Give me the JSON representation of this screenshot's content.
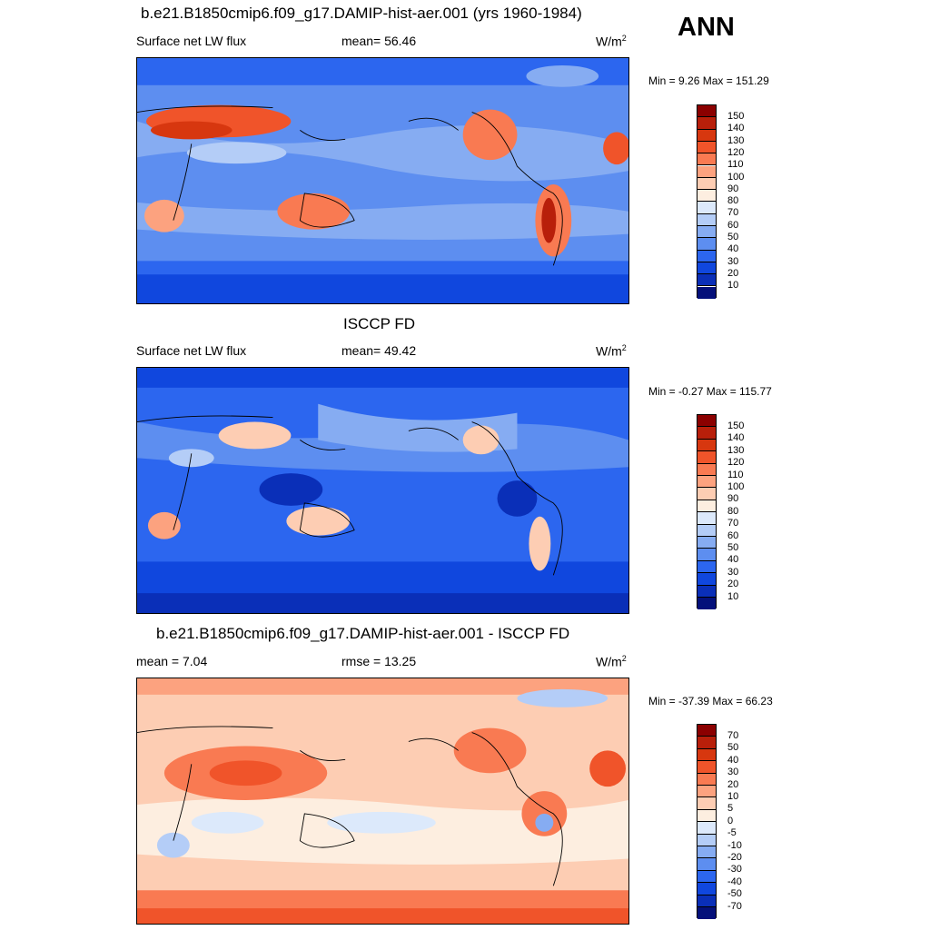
{
  "season": "ANN",
  "units": "W/m",
  "units_exp": "2",
  "panels": [
    {
      "title": "b.e21.B1850cmip6.f09_g17.DAMIP-hist-aer.001 (yrs 1960-1984)",
      "left_label": "Surface net LW flux",
      "center_label": "mean=  56.46",
      "minmax": "Min =   9.26 Max = 151.29",
      "ticks": [
        "150",
        "140",
        "130",
        "120",
        "110",
        "100",
        "90",
        "80",
        "70",
        "60",
        "50",
        "40",
        "30",
        "20",
        "10"
      ],
      "colors": [
        "#8b0000",
        "#b81f0a",
        "#d7370f",
        "#f0542a",
        "#f97a52",
        "#fca27f",
        "#fdcdb3",
        "#fdeee0",
        "#dce9fb",
        "#b4cdf7",
        "#86acf2",
        "#5d8ef0",
        "#2c66ef",
        "#1047de",
        "#0a2fb8",
        "#04107a"
      ]
    },
    {
      "title": "ISCCP FD",
      "left_label": "Surface net LW flux",
      "center_label": "mean=  49.42",
      "minmax": "Min =  -0.27 Max = 115.77",
      "ticks": [
        "150",
        "140",
        "130",
        "120",
        "110",
        "100",
        "90",
        "80",
        "70",
        "60",
        "50",
        "40",
        "30",
        "20",
        "10"
      ],
      "colors": [
        "#8b0000",
        "#b81f0a",
        "#d7370f",
        "#f0542a",
        "#f97a52",
        "#fca27f",
        "#fdcdb3",
        "#fdeee0",
        "#dce9fb",
        "#b4cdf7",
        "#86acf2",
        "#5d8ef0",
        "#2c66ef",
        "#1047de",
        "#0a2fb8",
        "#04107a"
      ]
    },
    {
      "title": "b.e21.B1850cmip6.f09_g17.DAMIP-hist-aer.001 - ISCCP FD",
      "left_label": "mean =   7.04",
      "center_label": "rmse =  13.25",
      "minmax": "Min = -37.39 Max =  66.23",
      "ticks": [
        "70",
        "50",
        "40",
        "30",
        "20",
        "10",
        "5",
        "0",
        "-5",
        "-10",
        "-20",
        "-30",
        "-40",
        "-50",
        "-70"
      ],
      "colors": [
        "#8b0000",
        "#b81f0a",
        "#d7370f",
        "#f0542a",
        "#f97a52",
        "#fca27f",
        "#fdcdb3",
        "#fdeee0",
        "#dce9fb",
        "#b4cdf7",
        "#86acf2",
        "#5d8ef0",
        "#2c66ef",
        "#1047de",
        "#0a2fb8",
        "#04107a"
      ]
    }
  ]
}
